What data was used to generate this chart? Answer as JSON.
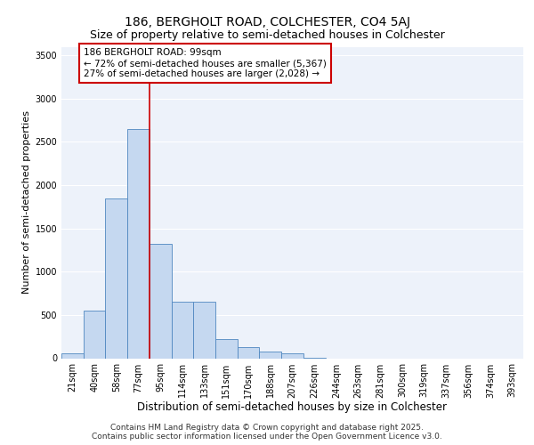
{
  "title1": "186, BERGHOLT ROAD, COLCHESTER, CO4 5AJ",
  "title2": "Size of property relative to semi-detached houses in Colchester",
  "xlabel": "Distribution of semi-detached houses by size in Colchester",
  "ylabel": "Number of semi-detached properties",
  "bin_labels": [
    "21sqm",
    "40sqm",
    "58sqm",
    "77sqm",
    "95sqm",
    "114sqm",
    "133sqm",
    "151sqm",
    "170sqm",
    "188sqm",
    "207sqm",
    "226sqm",
    "244sqm",
    "263sqm",
    "281sqm",
    "300sqm",
    "319sqm",
    "337sqm",
    "356sqm",
    "374sqm",
    "393sqm"
  ],
  "bar_values": [
    60,
    550,
    1850,
    2650,
    1320,
    650,
    650,
    220,
    130,
    80,
    55,
    10,
    0,
    0,
    0,
    0,
    0,
    0,
    0,
    0,
    0
  ],
  "bar_color": "#c5d8f0",
  "bar_edge_color": "#4f87c0",
  "vline_position": 3.5,
  "annotation_text": "186 BERGHOLT ROAD: 99sqm\n← 72% of semi-detached houses are smaller (5,367)\n27% of semi-detached houses are larger (2,028) →",
  "annotation_box_color": "#ffffff",
  "annotation_box_edge_color": "#cc0000",
  "vline_color": "#cc0000",
  "ylim": [
    0,
    3600
  ],
  "yticks": [
    0,
    500,
    1000,
    1500,
    2000,
    2500,
    3000,
    3500
  ],
  "background_color": "#edf2fa",
  "grid_color": "#ffffff",
  "footer_text": "Contains HM Land Registry data © Crown copyright and database right 2025.\nContains public sector information licensed under the Open Government Licence v3.0.",
  "title1_fontsize": 10,
  "title2_fontsize": 9,
  "xlabel_fontsize": 8.5,
  "ylabel_fontsize": 8,
  "tick_fontsize": 7,
  "annotation_fontsize": 7.5,
  "footer_fontsize": 6.5
}
